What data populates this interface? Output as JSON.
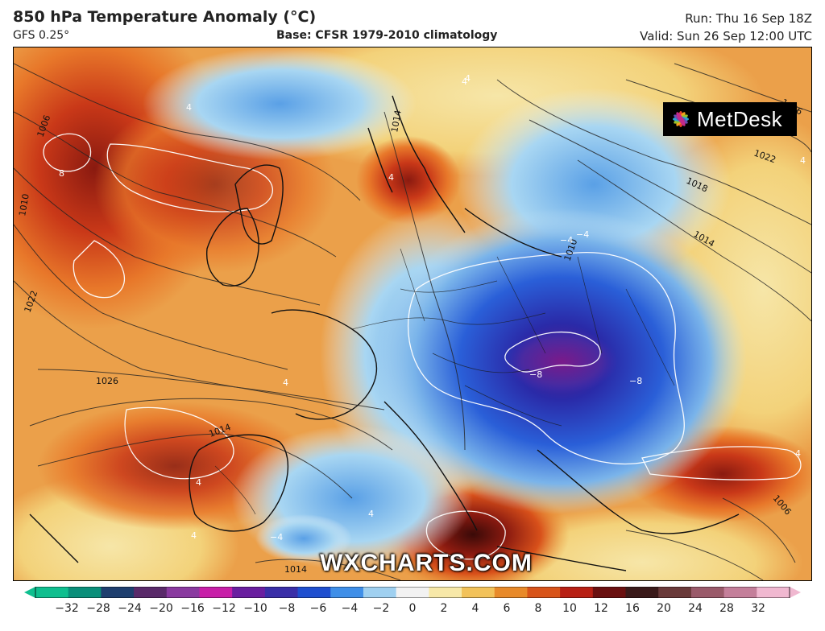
{
  "header": {
    "title": "850 hPa Temperature Anomaly (°C)",
    "model": "GFS 0.25°",
    "base": "Base: CFSR 1979-2010 climatology",
    "run": "Run: Thu 16 Sep 18Z",
    "valid": "Valid: Sun 26 Sep 12:00 UTC"
  },
  "logo": {
    "text": "MetDesk",
    "icon": "metdesk-star-icon"
  },
  "watermark": "WXCHARTS.COM",
  "colorbar": {
    "ticks": [
      "−32",
      "−28",
      "−24",
      "−20",
      "−16",
      "−12",
      "−10",
      "−8",
      "−6",
      "−4",
      "−2",
      "0",
      "2",
      "4",
      "6",
      "8",
      "10",
      "12",
      "16",
      "20",
      "24",
      "28",
      "32"
    ],
    "colors": [
      "#0fbf8f",
      "#0a8f7a",
      "#1f3f6f",
      "#5a2a6a",
      "#8a3aa0",
      "#c81fa8",
      "#6a1fa0",
      "#3a2fa8",
      "#1f4fcf",
      "#3f8fe8",
      "#9fd0f0",
      "#f2f2f2",
      "#f7e8a8",
      "#f2c25a",
      "#e88a2a",
      "#d8541a",
      "#b82014",
      "#6a1010",
      "#3a1a1a",
      "#6a3a3a",
      "#9a5a6a",
      "#c47f9a",
      "#f0b8d0"
    ]
  },
  "map": {
    "isobar_labels": [
      "1006",
      "1010",
      "1022",
      "1026",
      "1014",
      "1014",
      "1026",
      "1022",
      "1018",
      "1014",
      "1010",
      "1014",
      "1006",
      "1010"
    ],
    "anomaly_labels": [
      "8",
      "4",
      "4",
      "4",
      "−4",
      "−8",
      "−8",
      "4",
      "−4",
      "4",
      "4",
      "4",
      "4",
      "−4",
      "4",
      "−4",
      "4"
    ]
  }
}
